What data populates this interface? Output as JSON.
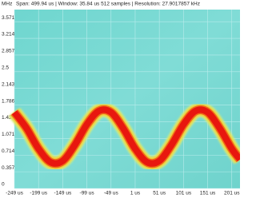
{
  "chart_data": {
    "type": "spectrogram",
    "title": "Span: 499.94 us | Window: 35.84 us 512 samples | Resolution: 27.9017857 kHz",
    "y_label": "MHz",
    "x": [
      -249,
      -224,
      -199,
      -174,
      -149,
      -124,
      -99,
      -74,
      -49,
      -24,
      1,
      26,
      51,
      76,
      101,
      126,
      151,
      176,
      201,
      218
    ],
    "series": [
      {
        "name": null,
        "color": "#e8170f",
        "values": [
          1.63,
          1.29,
          0.85,
          0.56,
          0.59,
          0.93,
          1.37,
          1.66,
          1.63,
          1.29,
          0.85,
          0.56,
          0.59,
          0.93,
          1.37,
          1.66,
          1.63,
          1.29,
          0.85,
          0.62
        ]
      }
    ],
    "xlim": [
      -249,
      218
    ],
    "ylim": [
      0,
      3.83
    ],
    "xticks": [
      {
        "value": -249,
        "label": "-249 us"
      },
      {
        "value": -199,
        "label": "-199 us"
      },
      {
        "value": -149,
        "label": "-149 us"
      },
      {
        "value": -99,
        "label": "-99 us"
      },
      {
        "value": -49,
        "label": "-49 us"
      },
      {
        "value": 1,
        "label": "1 us"
      },
      {
        "value": 51,
        "label": "51 us"
      },
      {
        "value": 101,
        "label": "101 us"
      },
      {
        "value": 151,
        "label": "151 us"
      },
      {
        "value": 201,
        "label": "201 us"
      }
    ],
    "yticks": [
      0,
      0.357,
      0.714,
      1.071,
      1.429,
      1.786,
      2.143,
      {
        "value": 2.5,
        "label": "2.5"
      },
      2.857,
      3.214,
      3.571
    ],
    "grid": true
  }
}
